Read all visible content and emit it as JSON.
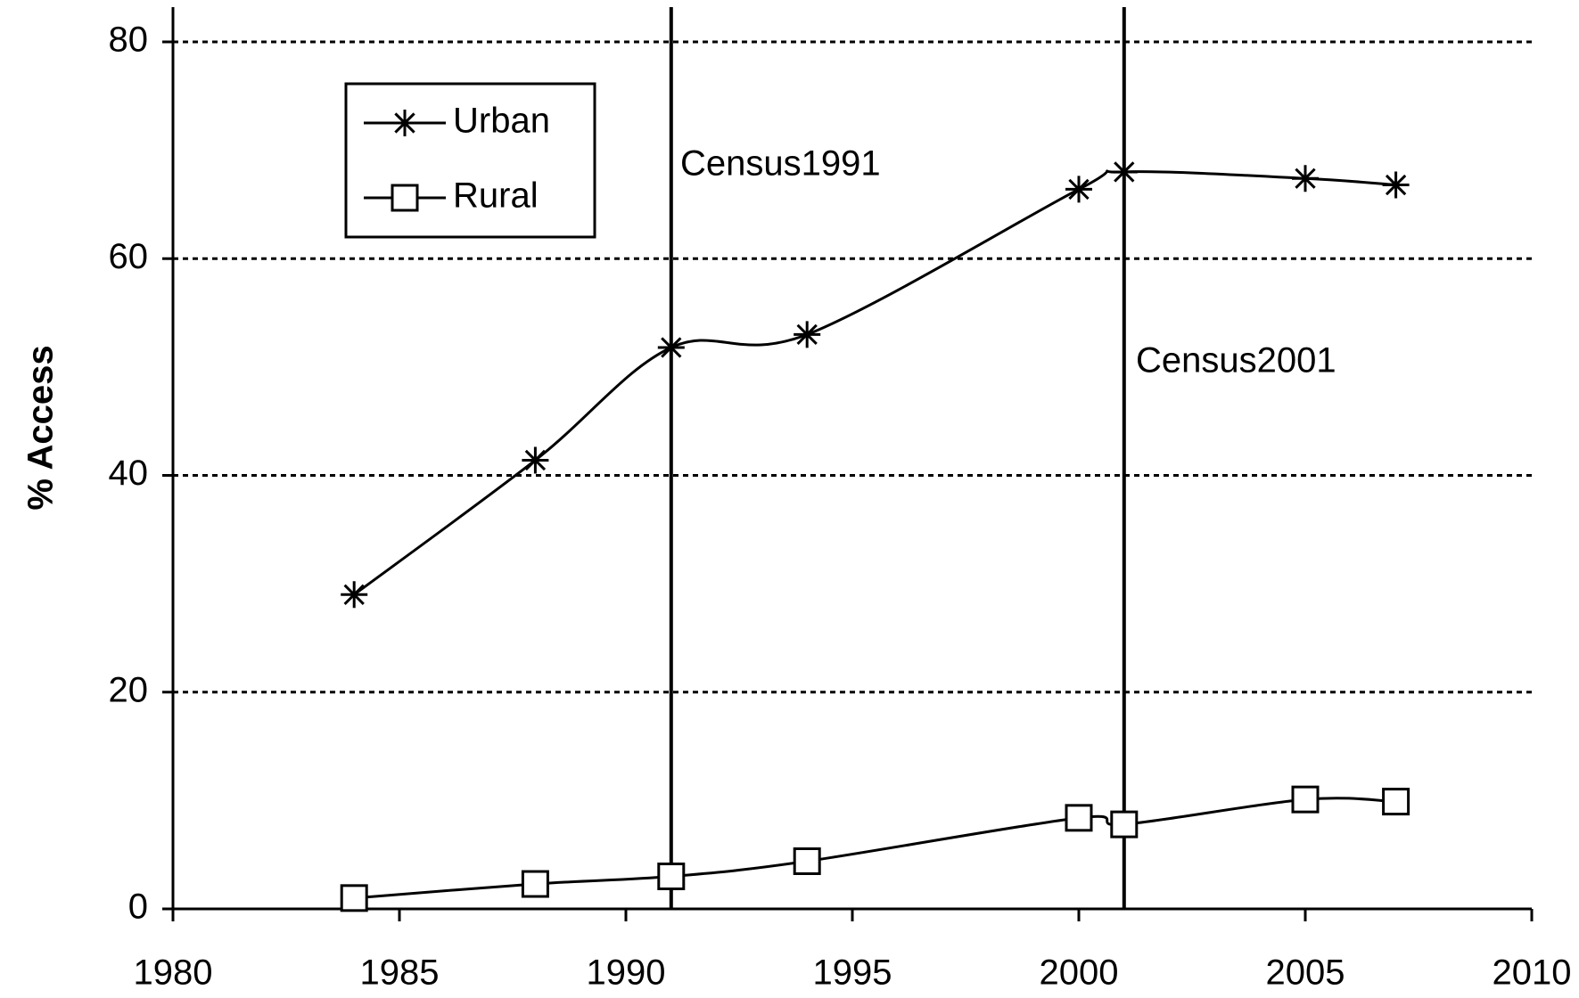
{
  "chart_data": {
    "type": "line",
    "y_label": "% Access",
    "x": [
      1984,
      1988,
      1991,
      1994,
      2000,
      2001,
      2005,
      2007
    ],
    "series": [
      {
        "name": "Urban",
        "color": "#000000",
        "marker": "star",
        "values": [
          29,
          41.4,
          51.8,
          53,
          66.4,
          68,
          67.4,
          66.8
        ]
      },
      {
        "name": "Rural",
        "color": "#000000",
        "marker": "square",
        "values": [
          1,
          2.3,
          3,
          4.4,
          8.4,
          7.8,
          10.1,
          9.9
        ]
      }
    ],
    "annotations": [
      {
        "text": "Census1991",
        "x": 1991
      },
      {
        "text": "Census2001",
        "x": 2001
      }
    ],
    "xlim": [
      1980,
      2010
    ],
    "xticks": [
      1980,
      1985,
      1990,
      1995,
      2000,
      2005,
      2010
    ],
    "ylim": [
      0,
      80
    ],
    "yticks": [
      0,
      20,
      40,
      60,
      80
    ],
    "grid": true,
    "legend": "upper left"
  }
}
